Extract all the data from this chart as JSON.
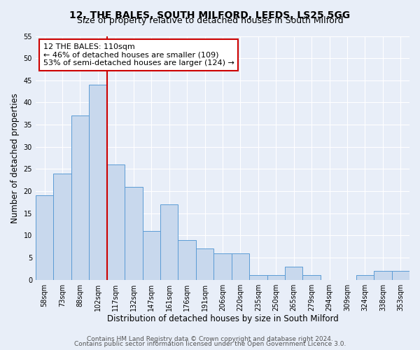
{
  "title": "12, THE BALES, SOUTH MILFORD, LEEDS, LS25 5GG",
  "subtitle": "Size of property relative to detached houses in South Milford",
  "xlabel": "Distribution of detached houses by size in South Milford",
  "ylabel": "Number of detached properties",
  "bin_labels": [
    "58sqm",
    "73sqm",
    "88sqm",
    "102sqm",
    "117sqm",
    "132sqm",
    "147sqm",
    "161sqm",
    "176sqm",
    "191sqm",
    "206sqm",
    "220sqm",
    "235sqm",
    "250sqm",
    "265sqm",
    "279sqm",
    "294sqm",
    "309sqm",
    "324sqm",
    "338sqm",
    "353sqm"
  ],
  "bar_values": [
    19,
    24,
    37,
    44,
    26,
    21,
    11,
    17,
    9,
    7,
    6,
    6,
    1,
    1,
    3,
    1,
    0,
    0,
    1,
    2,
    2
  ],
  "bar_color": "#c8d8ed",
  "bar_edge_color": "#5b9bd5",
  "ylim": [
    0,
    55
  ],
  "yticks": [
    0,
    5,
    10,
    15,
    20,
    25,
    30,
    35,
    40,
    45,
    50,
    55
  ],
  "vline_x": 3.5,
  "vline_color": "#cc0000",
  "annotation_text": "12 THE BALES: 110sqm\n← 46% of detached houses are smaller (109)\n53% of semi-detached houses are larger (124) →",
  "annotation_box_color": "#ffffff",
  "annotation_box_edge_color": "#cc0000",
  "footer_line1": "Contains HM Land Registry data © Crown copyright and database right 2024.",
  "footer_line2": "Contains public sector information licensed under the Open Government Licence 3.0.",
  "background_color": "#e8eef8",
  "plot_bg_color": "#e8eef8",
  "grid_color": "#ffffff",
  "title_fontsize": 10,
  "subtitle_fontsize": 9,
  "xlabel_fontsize": 8.5,
  "ylabel_fontsize": 8.5,
  "tick_fontsize": 7,
  "annotation_fontsize": 8,
  "footer_fontsize": 6.5
}
